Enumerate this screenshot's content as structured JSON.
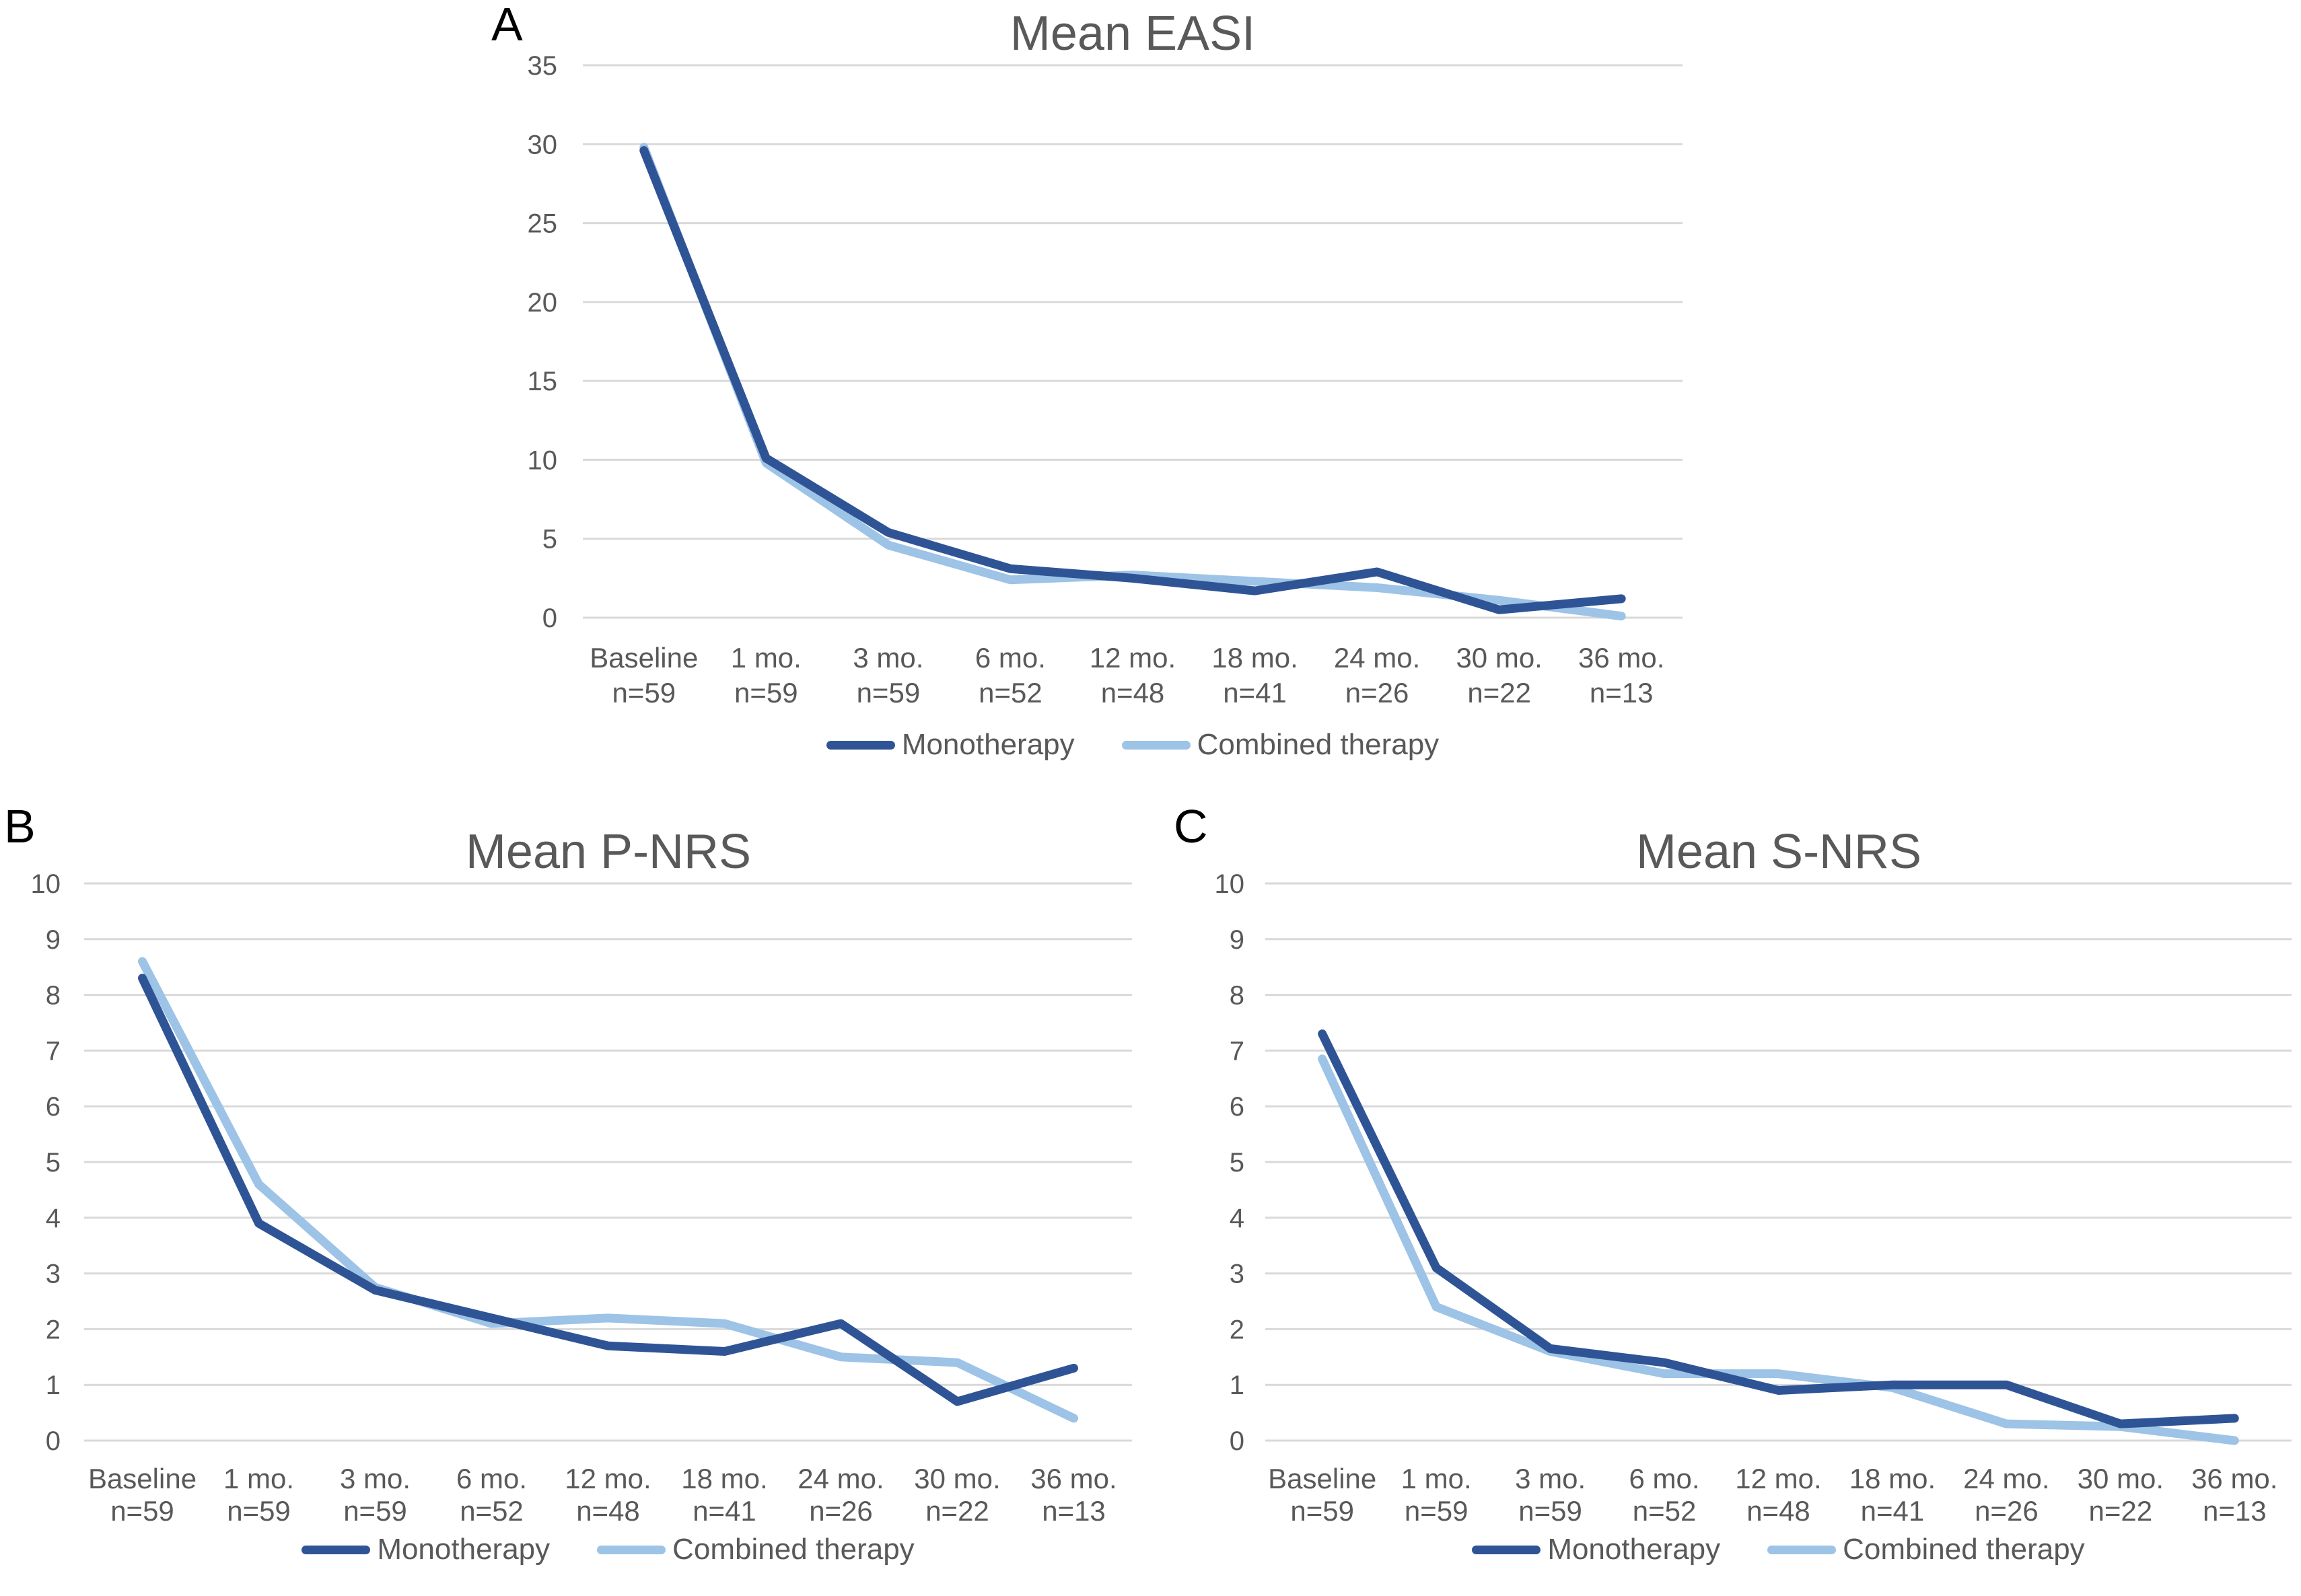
{
  "figure": {
    "background": "#FFFFFF",
    "text_color": "#595959",
    "grid_color": "#D9D9D9",
    "panel_letter_color": "#000000"
  },
  "chart_data": [
    {
      "panel": "A",
      "type": "line",
      "title": "Mean EASI",
      "xlabel": "",
      "ylabel": "",
      "ylim": [
        0,
        35
      ],
      "ytick_step": 5,
      "grid": true,
      "legend_position": "bottom",
      "categories": [
        "Baseline",
        "1 mo.",
        "3 mo.",
        "6 mo.",
        "12 mo.",
        "18 mo.",
        "24 mo.",
        "30 mo.",
        "36 mo."
      ],
      "n_labels": [
        "n=59",
        "n=59",
        "n=59",
        "n=52",
        "n=48",
        "n=41",
        "n=26",
        "n=22",
        "n=13"
      ],
      "series": [
        {
          "name": "Monotherapy",
          "color": "#2F5496",
          "values": [
            29.6,
            10.1,
            5.4,
            3.1,
            2.5,
            1.7,
            2.9,
            0.5,
            1.2
          ]
        },
        {
          "name": "Combined therapy",
          "color": "#9DC3E6",
          "values": [
            29.8,
            9.8,
            4.6,
            2.4,
            2.7,
            2.3,
            1.9,
            1.1,
            0.1
          ]
        }
      ]
    },
    {
      "panel": "B",
      "type": "line",
      "title": "Mean P-NRS",
      "xlabel": "",
      "ylabel": "",
      "ylim": [
        0,
        10
      ],
      "ytick_step": 1,
      "grid": true,
      "legend_position": "bottom",
      "categories": [
        "Baseline",
        "1 mo.",
        "3 mo.",
        "6 mo.",
        "12 mo.",
        "18 mo.",
        "24 mo.",
        "30 mo.",
        "36 mo."
      ],
      "n_labels": [
        "n=59",
        "n=59",
        "n=59",
        "n=52",
        "n=48",
        "n=41",
        "n=26",
        "n=22",
        "n=13"
      ],
      "series": [
        {
          "name": "Monotherapy",
          "color": "#2F5496",
          "values": [
            8.3,
            3.9,
            2.7,
            2.2,
            1.7,
            1.6,
            2.1,
            0.7,
            1.3
          ]
        },
        {
          "name": "Combined therapy",
          "color": "#9DC3E6",
          "values": [
            8.6,
            4.6,
            2.75,
            2.1,
            2.2,
            2.1,
            1.5,
            1.4,
            0.4
          ]
        }
      ]
    },
    {
      "panel": "C",
      "type": "line",
      "title": "Mean S-NRS",
      "xlabel": "",
      "ylabel": "",
      "ylim": [
        0,
        10
      ],
      "ytick_step": 1,
      "grid": true,
      "legend_position": "bottom",
      "categories": [
        "Baseline",
        "1 mo.",
        "3 mo.",
        "6 mo.",
        "12 mo.",
        "18 mo.",
        "24 mo.",
        "30 mo.",
        "36 mo."
      ],
      "n_labels": [
        "n=59",
        "n=59",
        "n=59",
        "n=52",
        "n=48",
        "n=41",
        "n=26",
        "n=22",
        "n=13"
      ],
      "series": [
        {
          "name": "Monotherapy",
          "color": "#2F5496",
          "values": [
            7.3,
            3.1,
            1.65,
            1.4,
            0.9,
            1.0,
            1.0,
            0.3,
            0.4
          ]
        },
        {
          "name": "Combined therapy",
          "color": "#9DC3E6",
          "values": [
            6.85,
            2.4,
            1.6,
            1.2,
            1.2,
            0.95,
            0.3,
            0.25,
            0.0
          ]
        }
      ]
    }
  ]
}
